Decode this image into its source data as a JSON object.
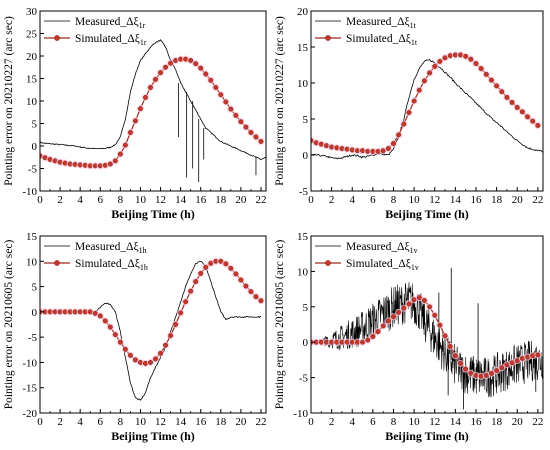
{
  "figure": {
    "layout": "2x2 grid"
  },
  "chart_data": [
    {
      "type": "line",
      "xlabel": "Beijing Time (h)",
      "ylabel": "Pointing error on 20210227 (arc sec)",
      "xlim": [
        0,
        22.5
      ],
      "ylim": [
        -10,
        30
      ],
      "xticks": [
        0,
        2,
        4,
        6,
        8,
        10,
        12,
        14,
        16,
        18,
        20,
        22
      ],
      "yticks": [
        -10,
        -5,
        0,
        5,
        10,
        15,
        20,
        25,
        30
      ],
      "legend_position": "top-left",
      "grid": false,
      "series": [
        {
          "name": "Measured_Δξ",
          "name_sub": "1r",
          "style": "thin black line",
          "color": "#000000",
          "x": [
            0,
            0.5,
            1,
            1.5,
            2,
            2.5,
            3,
            3.5,
            4,
            4.5,
            5,
            5.5,
            6,
            6.5,
            7,
            7.5,
            8,
            8.5,
            9,
            9.5,
            10,
            10.5,
            11,
            11.5,
            12,
            12.5,
            13,
            13.5,
            14,
            14.5,
            15,
            15.5,
            16,
            16.5,
            17,
            17.5,
            18,
            18.5,
            19,
            19.5,
            20,
            20.5,
            21,
            21.5,
            22,
            22.5
          ],
          "y": [
            0.8,
            0.6,
            0.5,
            0.4,
            0.3,
            0.2,
            0.1,
            0,
            -0.2,
            -0.4,
            -0.5,
            -0.6,
            -0.6,
            -0.5,
            -0.3,
            0.3,
            2,
            6,
            12,
            16,
            19,
            20.5,
            22,
            23,
            23.5,
            22,
            19,
            17,
            14,
            12,
            10,
            8,
            6,
            4,
            3,
            2,
            1,
            0.5,
            0,
            -0.5,
            -1,
            -1.5,
            -2,
            -2.5,
            -3,
            -2.5
          ],
          "spikes": [
            {
              "x": 14.6,
              "y": -7
            },
            {
              "x": 15.2,
              "y": -5
            },
            {
              "x": 15.8,
              "y": -8
            },
            {
              "x": 16.3,
              "y": -3
            },
            {
              "x": 13.8,
              "y": 2
            },
            {
              "x": 21.5,
              "y": -6.5
            }
          ]
        },
        {
          "name": "Simulated_Δξ",
          "name_sub": "1r",
          "style": "dark red line with red circle markers",
          "color": "#a0281e",
          "x": [
            0,
            0.5,
            1,
            1.5,
            2,
            2.5,
            3,
            3.5,
            4,
            4.5,
            5,
            5.5,
            6,
            6.5,
            7,
            7.5,
            8,
            8.5,
            9,
            9.5,
            10,
            10.5,
            11,
            11.5,
            12,
            12.5,
            13,
            13.5,
            14,
            14.5,
            15,
            15.5,
            16,
            16.5,
            17,
            17.5,
            18,
            18.5,
            19,
            19.5,
            20,
            20.5,
            21,
            21.5,
            22
          ],
          "y": [
            -2.2,
            -2.6,
            -3,
            -3.3,
            -3.6,
            -3.8,
            -4,
            -4.1,
            -4.2,
            -4.3,
            -4.4,
            -4.4,
            -4.4,
            -4.3,
            -4,
            -3.3,
            -1.8,
            0.2,
            3,
            5.6,
            8.3,
            10.8,
            13,
            14.8,
            16.3,
            17.5,
            18.4,
            19,
            19.3,
            19.3,
            19,
            18.3,
            17.3,
            16,
            14.6,
            13,
            11.4,
            9.8,
            8.2,
            6.8,
            5.4,
            4.2,
            3,
            2,
            1
          ]
        }
      ]
    },
    {
      "type": "line",
      "xlabel": "Beijing Time (h)",
      "ylabel": "Pointing error on 20210227 (arc sec)",
      "xlim": [
        0,
        22.5
      ],
      "ylim": [
        -5,
        20
      ],
      "xticks": [
        0,
        2,
        4,
        6,
        8,
        10,
        12,
        14,
        16,
        18,
        20,
        22
      ],
      "yticks": [
        -5,
        0,
        5,
        10,
        15,
        20
      ],
      "legend_position": "top-left",
      "grid": false,
      "series": [
        {
          "name": "Measured_Δξ",
          "name_sub": "1t",
          "style": "thin black line",
          "color": "#000000",
          "x": [
            0,
            0.5,
            1,
            1.5,
            2,
            2.5,
            3,
            3.5,
            4,
            4.5,
            5,
            5.5,
            6,
            6.5,
            7,
            7.5,
            8,
            8.5,
            9,
            9.5,
            10,
            10.5,
            11,
            11.5,
            12,
            12.5,
            13,
            13.5,
            14,
            14.5,
            15,
            15.5,
            16,
            16.5,
            17,
            17.5,
            18,
            18.5,
            19,
            19.5,
            20,
            20.5,
            21,
            21.5,
            22,
            22.5
          ],
          "y": [
            0,
            0,
            -0.1,
            -0.2,
            -0.4,
            -0.5,
            -0.4,
            -0.2,
            0,
            -0.1,
            -0.3,
            -0.2,
            0,
            0.2,
            0.1,
            0,
            0.8,
            2.5,
            5,
            8,
            10.5,
            12,
            13,
            13.2,
            12.8,
            12.2,
            11.5,
            10.8,
            10,
            9.3,
            8.6,
            7.9,
            7.2,
            6.5,
            5.8,
            5.1,
            4.5,
            3.9,
            3.2,
            2.6,
            2,
            1.5,
            1,
            0.8,
            0.6,
            0.5
          ]
        },
        {
          "name": "Simulated_Δξ",
          "name_sub": "1t",
          "style": "dark red line with red circle markers",
          "color": "#a0281e",
          "x": [
            0,
            0.5,
            1,
            1.5,
            2,
            2.5,
            3,
            3.5,
            4,
            4.5,
            5,
            5.5,
            6,
            6.5,
            7,
            7.5,
            8,
            8.5,
            9,
            9.5,
            10,
            10.5,
            11,
            11.5,
            12,
            12.5,
            13,
            13.5,
            14,
            14.5,
            15,
            15.5,
            16,
            16.5,
            17,
            17.5,
            18,
            18.5,
            19,
            19.5,
            20,
            20.5,
            21,
            21.5,
            22
          ],
          "y": [
            2,
            1.7,
            1.5,
            1.3,
            1.1,
            1,
            0.9,
            0.8,
            0.7,
            0.6,
            0.6,
            0.5,
            0.5,
            0.5,
            0.6,
            0.9,
            1.6,
            2.8,
            4.3,
            5.9,
            7.5,
            9,
            10.3,
            11.4,
            12.3,
            13,
            13.5,
            13.8,
            13.9,
            13.9,
            13.7,
            13.3,
            12.7,
            12,
            11.2,
            10.4,
            9.6,
            8.8,
            8,
            7.3,
            6.6,
            6,
            5.3,
            4.7,
            4.1
          ]
        }
      ]
    },
    {
      "type": "line",
      "xlabel": "Beijing Time (h)",
      "ylabel": "Pointing error on 20210605 (arc sec)",
      "xlim": [
        0,
        22.5
      ],
      "ylim": [
        -20,
        15
      ],
      "xticks": [
        0,
        2,
        4,
        6,
        8,
        10,
        12,
        14,
        16,
        18,
        20,
        22
      ],
      "yticks": [
        -20,
        -15,
        -10,
        -5,
        0,
        5,
        10,
        15
      ],
      "legend_position": "top-left",
      "grid": false,
      "series": [
        {
          "name": "Measured_Δξ",
          "name_sub": "1h",
          "style": "thin black line",
          "color": "#000000",
          "x": [
            0,
            0.5,
            1,
            1.5,
            2,
            2.5,
            3,
            3.5,
            4,
            4.5,
            5,
            5.5,
            6,
            6.5,
            7,
            7.5,
            8,
            8.5,
            9,
            9.5,
            10,
            10.5,
            11,
            11.5,
            12,
            12.5,
            13,
            13.5,
            14,
            14.5,
            15,
            15.5,
            16,
            16.5,
            17,
            17.5,
            18,
            18.5,
            19,
            19.5,
            20,
            20.5,
            21,
            21.5,
            22
          ],
          "y": [
            0,
            0,
            0,
            0,
            0,
            0,
            0,
            0,
            0,
            -0.2,
            -0.3,
            0,
            0.8,
            1.8,
            1.5,
            0,
            -4,
            -9,
            -14,
            -17,
            -17.5,
            -16,
            -13,
            -11,
            -9,
            -7,
            -4,
            -1,
            2,
            5,
            7.5,
            9.5,
            10,
            9,
            6,
            3,
            0,
            -1.5,
            -1,
            -1,
            -1,
            -1,
            -1,
            -1,
            -1
          ]
        },
        {
          "name": "Simulated_Δξ",
          "name_sub": "1h",
          "style": "dark red line with red circle markers",
          "color": "#a0281e",
          "x": [
            0,
            0.5,
            1,
            1.5,
            2,
            2.5,
            3,
            3.5,
            4,
            4.5,
            5,
            5.5,
            6,
            6.5,
            7,
            7.5,
            8,
            8.5,
            9,
            9.5,
            10,
            10.5,
            11,
            11.5,
            12,
            12.5,
            13,
            13.5,
            14,
            14.5,
            15,
            15.5,
            16,
            16.5,
            17,
            17.5,
            18,
            18.5,
            19,
            19.5,
            20,
            20.5,
            21,
            21.5,
            22
          ],
          "y": [
            0,
            0,
            0,
            0,
            0,
            0,
            0,
            0,
            0,
            0,
            0,
            -0.3,
            -0.8,
            -1.8,
            -3,
            -4.5,
            -6,
            -7.4,
            -8.6,
            -9.5,
            -10,
            -10.2,
            -10,
            -9.3,
            -8.2,
            -6.6,
            -4.7,
            -2.5,
            -0.2,
            2,
            4.1,
            6,
            7.6,
            8.8,
            9.6,
            10,
            10,
            9.5,
            8.6,
            7.5,
            6.3,
            5.1,
            4,
            3,
            2.2
          ]
        }
      ]
    },
    {
      "type": "line",
      "xlabel": "Beijing Time (h)",
      "ylabel": "Pointing error on 20210605 (arc sec)",
      "xlim": [
        0,
        22.5
      ],
      "ylim": [
        -10,
        15
      ],
      "xticks": [
        0,
        2,
        4,
        6,
        8,
        10,
        12,
        14,
        16,
        18,
        20,
        22
      ],
      "yticks": [
        -10,
        -5,
        0,
        5,
        10,
        15
      ],
      "legend_position": "top-left",
      "grid": false,
      "series": [
        {
          "name": "Measured_Δξ",
          "name_sub": "1v",
          "style": "thin black line, very noisy",
          "color": "#000000",
          "x": [
            0,
            0.5,
            1,
            1.5,
            2,
            2.5,
            3,
            3.5,
            4,
            4.5,
            5,
            5.5,
            6,
            6.5,
            7,
            7.5,
            8,
            8.5,
            9,
            9.5,
            10,
            10.5,
            11,
            11.5,
            12,
            12.5,
            13,
            13.5,
            14,
            14.5,
            15,
            15.5,
            16,
            16.5,
            17,
            17.5,
            18,
            18.5,
            19,
            19.5,
            20,
            20.5,
            21,
            21.5,
            22,
            22.5
          ],
          "y": [
            0,
            0,
            0,
            0.2,
            0.3,
            0.5,
            0.7,
            1,
            1.3,
            1.6,
            2,
            2.5,
            3,
            3.5,
            4,
            4.5,
            5,
            5.3,
            5.5,
            5.8,
            5.5,
            4.5,
            3,
            1.8,
            0.5,
            -0.5,
            -1.5,
            -2.5,
            -3.3,
            -4,
            -4.3,
            -4.6,
            -4.8,
            -4.9,
            -5,
            -4.8,
            -4.5,
            -4.2,
            -3.8,
            -3.5,
            -3.2,
            -3,
            -2.8,
            -2.6,
            -2.5,
            -2.3
          ],
          "noise_band": [
            0,
            0.3,
            0.5,
            0.8,
            1.2,
            1.5,
            1.8,
            2,
            2.2,
            2.4,
            2.5,
            2.6,
            2.7,
            2.8,
            2.9,
            3,
            3,
            3,
            3,
            3,
            3,
            3,
            3,
            3,
            3,
            3,
            3,
            3,
            3,
            3,
            3,
            3,
            3,
            3,
            3,
            3,
            3,
            3,
            3,
            3,
            3,
            3,
            3,
            3,
            3,
            3
          ],
          "spikes": [
            {
              "x": 13.6,
              "y": 10.5
            },
            {
              "x": 14.8,
              "y": -9.5
            },
            {
              "x": 13.3,
              "y": -7.5
            },
            {
              "x": 12.4,
              "y": 7
            },
            {
              "x": 16.2,
              "y": 5.5
            },
            {
              "x": 21.8,
              "y": -7
            }
          ]
        },
        {
          "name": "Simulated_Δξ",
          "name_sub": "1v",
          "style": "dark red line with red circle markers",
          "color": "#a0281e",
          "x": [
            0,
            0.5,
            1,
            1.5,
            2,
            2.5,
            3,
            3.5,
            4,
            4.5,
            5,
            5.5,
            6,
            6.5,
            7,
            7.5,
            8,
            8.5,
            9,
            9.5,
            10,
            10.5,
            11,
            11.5,
            12,
            12.5,
            13,
            13.5,
            14,
            14.5,
            15,
            15.5,
            16,
            16.5,
            17,
            17.5,
            18,
            18.5,
            19,
            19.5,
            20,
            20.5,
            21,
            21.5,
            22
          ],
          "y": [
            0,
            0,
            0,
            0,
            0,
            0,
            0,
            0,
            0,
            0,
            0,
            0.3,
            0.8,
            1.5,
            2.3,
            3,
            3.6,
            4.2,
            4.8,
            5.4,
            6,
            6.3,
            5.9,
            5,
            3.8,
            2.4,
            0.9,
            -0.6,
            -1.9,
            -3,
            -3.8,
            -4.4,
            -4.7,
            -4.8,
            -4.7,
            -4.4,
            -4,
            -3.6,
            -3.2,
            -2.9,
            -2.6,
            -2.3,
            -2.1,
            -1.9,
            -1.8
          ]
        }
      ]
    }
  ]
}
